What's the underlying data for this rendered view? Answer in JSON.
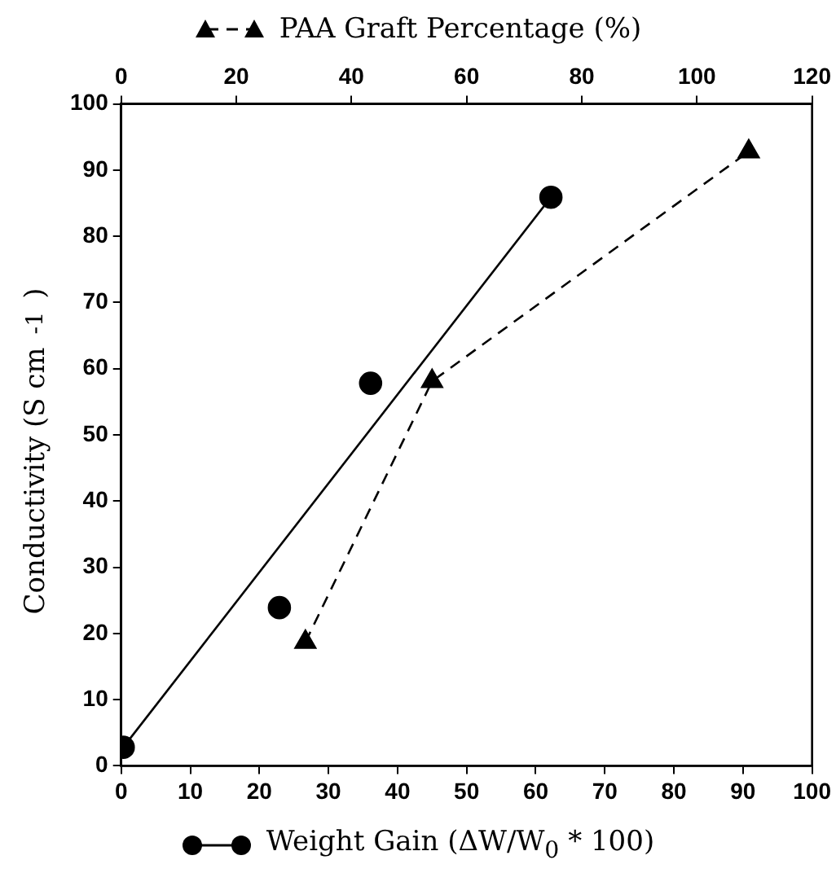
{
  "chart_data": {
    "type": "scatter",
    "xlabel": "Weight Gain (ΔW/W$_{0}$ * 100)",
    "x2label": "PAA Graft Percentage (%)",
    "ylabel": "Conductivity (S cm$^{-1}$)",
    "xlim": [
      0,
      100
    ],
    "xticks": [
      0,
      10,
      20,
      30,
      40,
      50,
      60,
      70,
      80,
      90,
      100
    ],
    "x2lim": [
      0,
      120
    ],
    "x2ticks": [
      0,
      20,
      40,
      60,
      80,
      100,
      120
    ],
    "ylim": [
      0,
      100
    ],
    "yticks": [
      0,
      10,
      20,
      30,
      40,
      50,
      60,
      70,
      80,
      90,
      100
    ],
    "grid": false,
    "legend": false,
    "series": [
      {
        "marker": "circle",
        "color": "#000000",
        "x": [
          0.3,
          22.9,
          36.1,
          62.2
        ],
        "values": [
          2.8,
          23.9,
          57.8,
          85.9
        ]
      },
      {
        "type": "line",
        "marker": "none",
        "line_style": "solid",
        "color": "#000000",
        "x": [
          0.3,
          62.2
        ],
        "values": [
          2.8,
          85.9
        ]
      },
      {
        "type": "line",
        "axis": "x2",
        "marker": "triangle",
        "line_style": "dashed",
        "color": "#000000",
        "x": [
          32,
          54,
          109
        ],
        "values": [
          18.7,
          58.1,
          92.8
        ]
      }
    ]
  }
}
